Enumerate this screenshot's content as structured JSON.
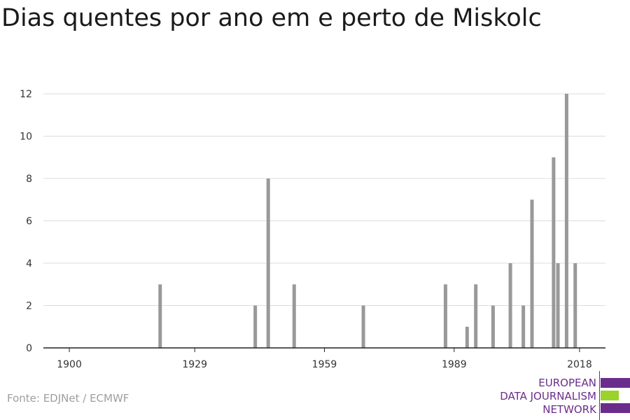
{
  "title": "Dias quentes por ano em e perto de Miskolc",
  "source": "Fonte: EDJNet / ECMWF",
  "logo": {
    "lines": [
      "EUROPEAN",
      "DATA JOURNALISM",
      "NETWORK"
    ],
    "colors": {
      "purple": "#6b2d8c",
      "green": "#9bd22b"
    }
  },
  "chart_data": {
    "type": "bar",
    "title": "Dias quentes por ano em e perto de Miskolc",
    "xlabel": "",
    "ylabel": "",
    "x_ticks": [
      "1900",
      "1929",
      "1959",
      "1989",
      "2018"
    ],
    "y_ticks": [
      0,
      2,
      4,
      6,
      8,
      10,
      12
    ],
    "xlim": [
      1894,
      2024
    ],
    "ylim": [
      0,
      12
    ],
    "grid": true,
    "bar_color": "#999999",
    "points": [
      {
        "x": 1921,
        "y": 3
      },
      {
        "x": 1943,
        "y": 2
      },
      {
        "x": 1946,
        "y": 8
      },
      {
        "x": 1952,
        "y": 3
      },
      {
        "x": 1968,
        "y": 2
      },
      {
        "x": 1987,
        "y": 3
      },
      {
        "x": 1992,
        "y": 1
      },
      {
        "x": 1994,
        "y": 3
      },
      {
        "x": 1998,
        "y": 2
      },
      {
        "x": 2002,
        "y": 4
      },
      {
        "x": 2005,
        "y": 2
      },
      {
        "x": 2007,
        "y": 7
      },
      {
        "x": 2012,
        "y": 9
      },
      {
        "x": 2013,
        "y": 4
      },
      {
        "x": 2015,
        "y": 12
      },
      {
        "x": 2017,
        "y": 4
      }
    ]
  }
}
